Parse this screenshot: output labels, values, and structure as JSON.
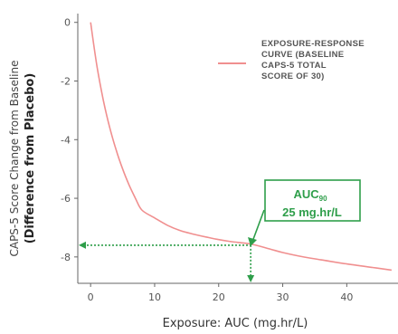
{
  "chart_data": {
    "type": "line",
    "xlabel": "Exposure: AUC (mg.hr/L)",
    "ylabel_line1": "CAPS-5 Score Change from Baseline",
    "ylabel_line2": "(Difference from Placebo)",
    "xlim": [
      -2,
      48
    ],
    "ylim": [
      -8.9,
      0.3
    ],
    "xticks": [
      0,
      10,
      20,
      30,
      40
    ],
    "yticks": [
      0,
      -2,
      -4,
      -6,
      -8
    ],
    "x_tick_labels": [
      "0",
      "10",
      "20",
      "30",
      "40"
    ],
    "y_tick_labels": [
      "0",
      "-2",
      "-4",
      "-6",
      "-8"
    ],
    "grid": false,
    "legend_position": "top-right",
    "series": [
      {
        "name": "EXPOSURE-RESPONSE CURVE (BASELINE CAPS-5 TOTAL SCORE OF 30)",
        "color": "#f08f8f",
        "x": [
          0,
          1,
          2,
          3,
          4,
          5,
          6,
          7,
          8,
          10,
          12,
          14,
          16,
          18,
          20,
          22,
          25,
          28,
          30,
          33,
          36,
          40,
          44,
          47
        ],
        "y": [
          0,
          -1.5,
          -2.67,
          -3.6,
          -4.36,
          -5.0,
          -5.54,
          -6.0,
          -6.4,
          -6.67,
          -6.92,
          -7.1,
          -7.22,
          -7.32,
          -7.41,
          -7.48,
          -7.56,
          -7.73,
          -7.85,
          -7.99,
          -8.1,
          -8.24,
          -8.36,
          -8.45
        ]
      }
    ],
    "legend_lines": [
      "EXPOSURE-RESPONSE",
      "CURVE (BASELINE",
      "CAPS-5 TOTAL",
      "SCORE OF 30)"
    ],
    "annotation": {
      "label": "AUC",
      "subscript": "90",
      "value_text": "25 mg.hr/L",
      "x": 25,
      "y": -7.6,
      "color": "#2e9e4a"
    }
  }
}
